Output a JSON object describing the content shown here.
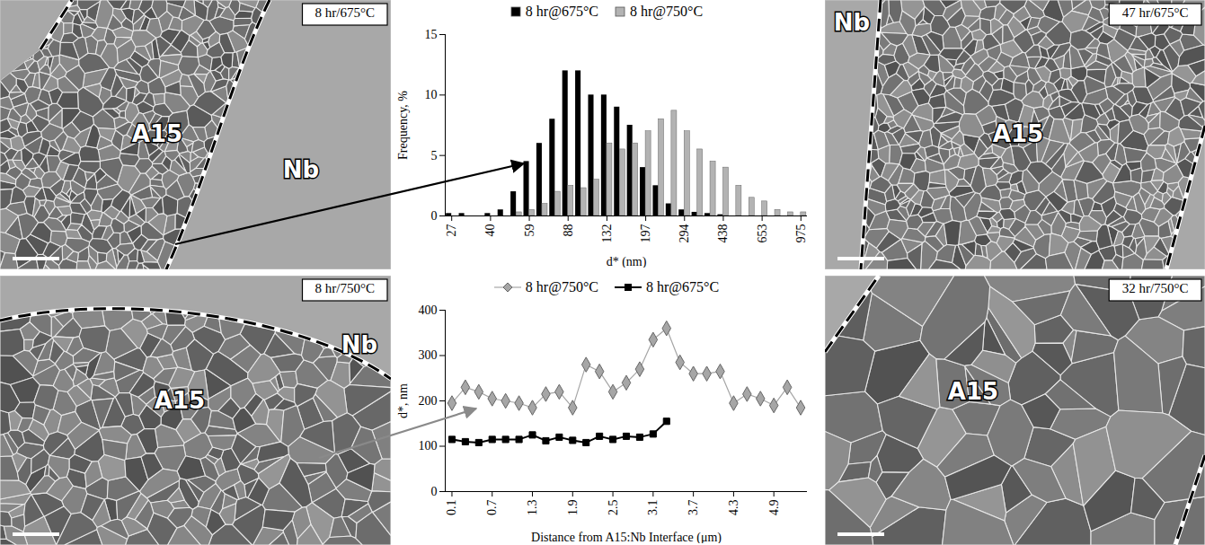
{
  "chart_data": [
    {
      "type": "bar",
      "x_label": "d* (nm)",
      "y_label": "Frequency, %",
      "categories": [
        27,
        null,
        null,
        40,
        null,
        null,
        59,
        null,
        null,
        88,
        null,
        null,
        132,
        null,
        null,
        197,
        null,
        null,
        294,
        null,
        null,
        438,
        null,
        null,
        653,
        null,
        null,
        975
      ],
      "series": [
        {
          "name": "8 hr@675°C",
          "color": "#000000",
          "values": [
            0.2,
            0.2,
            0,
            0.2,
            0.5,
            2,
            4.5,
            6,
            8,
            12,
            12,
            10,
            10,
            9,
            7.5,
            4,
            2.5,
            1,
            0.5,
            0.3,
            0.2,
            0.1,
            0,
            0,
            0,
            0,
            0,
            0
          ]
        },
        {
          "name": "8 hr@750°C",
          "color": "#b3b3b3",
          "values": [
            0,
            0,
            0,
            0,
            0,
            0.3,
            0.5,
            1,
            2,
            2.5,
            2.3,
            3,
            6,
            5.5,
            6,
            7,
            8,
            8.7,
            7,
            5.5,
            4.5,
            4,
            2.5,
            1.5,
            1.2,
            0.5,
            0.3,
            0.3
          ]
        }
      ],
      "ylim": [
        0,
        15
      ],
      "yticks": [
        0,
        5,
        10,
        15
      ],
      "legend": "top"
    },
    {
      "type": "line",
      "x_label": "Distance from A15:Nb Interface (μm)",
      "y_label": "d*, nm",
      "x": [
        0.1,
        0.3,
        0.5,
        0.7,
        0.9,
        1.1,
        1.3,
        1.5,
        1.7,
        1.9,
        2.1,
        2.3,
        2.5,
        2.7,
        2.9,
        3.1,
        3.3,
        3.5,
        3.7,
        3.9,
        4.1,
        4.3,
        4.5,
        4.7,
        4.9,
        5.1,
        5.3
      ],
      "xlim": [
        0,
        5.4
      ],
      "xticks": [
        0.1,
        0.7,
        1.3,
        1.9,
        2.5,
        3.1,
        3.7,
        4.3,
        4.9
      ],
      "series": [
        {
          "name": "8 hr@750°C",
          "color": "#a6a6a6",
          "marker": "diamond",
          "values": [
            195,
            230,
            220,
            205,
            200,
            195,
            185,
            215,
            220,
            185,
            280,
            265,
            220,
            240,
            270,
            335,
            360,
            285,
            260,
            260,
            265,
            195,
            215,
            205,
            190,
            230,
            185
          ]
        },
        {
          "name": "8 hr@675°C",
          "color": "#000000",
          "marker": "square",
          "values": [
            115,
            110,
            108,
            115,
            115,
            115,
            125,
            112,
            120,
            113,
            108,
            122,
            115,
            122,
            120,
            127,
            155,
            null,
            null,
            null,
            null,
            null,
            null,
            null,
            null,
            null,
            null
          ]
        }
      ],
      "ylim": [
        0,
        400
      ],
      "yticks": [
        0,
        100,
        200,
        300,
        400
      ],
      "legend": "top"
    }
  ],
  "micrographs": [
    {
      "title": "8 hr/675°C",
      "labels": [
        "A15",
        "Nb"
      ]
    },
    {
      "title": "8 hr/750°C",
      "labels": [
        "A15",
        "Nb"
      ]
    },
    {
      "title": "47 hr/675°C",
      "labels": [
        "Nb",
        "A15"
      ]
    },
    {
      "title": "32 hr/750°C",
      "labels": [
        "A15"
      ]
    }
  ]
}
